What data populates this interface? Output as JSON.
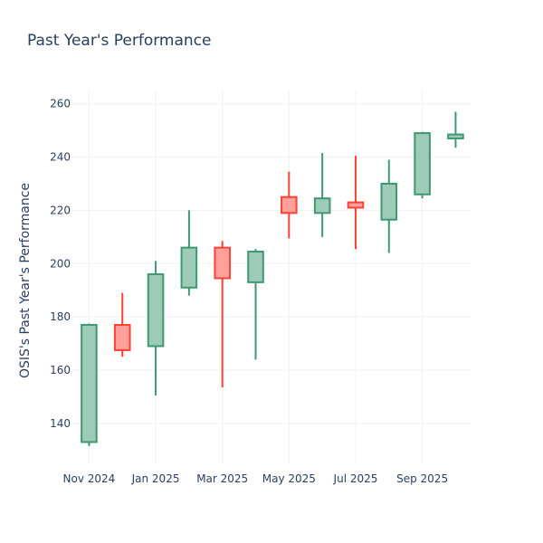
{
  "chart_data": {
    "type": "candlestick",
    "title": "Past Year's Performance",
    "xlabel": "",
    "ylabel": "OSIS's Past Year's Performance",
    "ylim": [
      125,
      265
    ],
    "y_ticks": [
      140,
      160,
      180,
      200,
      220,
      240,
      260
    ],
    "x_ticks": [
      {
        "label": "Nov 2024",
        "month_index": 0
      },
      {
        "label": "Jan 2025",
        "month_index": 2
      },
      {
        "label": "Mar 2025",
        "month_index": 4
      },
      {
        "label": "May 2025",
        "month_index": 6
      },
      {
        "label": "Jul 2025",
        "month_index": 8
      },
      {
        "label": "Sep 2025",
        "month_index": 10
      }
    ],
    "x_range": [
      -0.5,
      11.45
    ],
    "grid": true,
    "increasing_color": "#3d9970",
    "increasing_fill": "#9ecab8",
    "decreasing_color": "#ff4136",
    "decreasing_fill": "#ffa09b",
    "candles": [
      {
        "month_index": 0,
        "open": 133,
        "high": 177.5,
        "low": 131.5,
        "close": 177
      },
      {
        "month_index": 1,
        "open": 177,
        "high": 189,
        "low": 165,
        "close": 167.5
      },
      {
        "month_index": 2,
        "open": 169,
        "high": 201,
        "low": 150.5,
        "close": 196
      },
      {
        "month_index": 3,
        "open": 191,
        "high": 220,
        "low": 188,
        "close": 206
      },
      {
        "month_index": 4,
        "open": 206,
        "high": 208.5,
        "low": 153.5,
        "close": 194.5
      },
      {
        "month_index": 5,
        "open": 193,
        "high": 205.5,
        "low": 164,
        "close": 204.5
      },
      {
        "month_index": 6,
        "open": 225,
        "high": 234.5,
        "low": 209.5,
        "close": 219
      },
      {
        "month_index": 7,
        "open": 219,
        "high": 241.5,
        "low": 210,
        "close": 224.5
      },
      {
        "month_index": 8,
        "open": 223,
        "high": 240.5,
        "low": 205.5,
        "close": 221
      },
      {
        "month_index": 9,
        "open": 216.5,
        "high": 239,
        "low": 204,
        "close": 230
      },
      {
        "month_index": 10,
        "open": 226,
        "high": 249.5,
        "low": 224.5,
        "close": 249
      },
      {
        "month_index": 11,
        "open": 247,
        "high": 257,
        "low": 243.5,
        "close": 248.5
      }
    ]
  }
}
